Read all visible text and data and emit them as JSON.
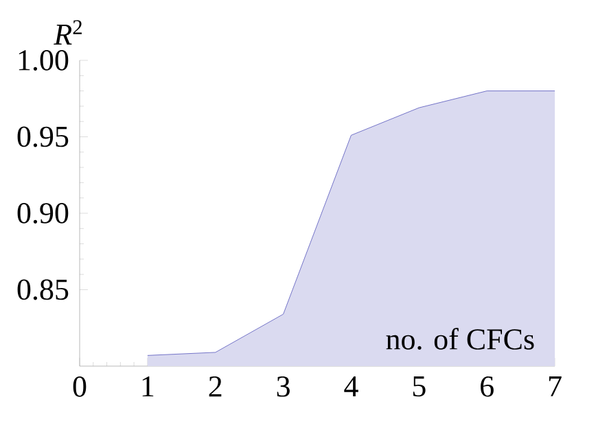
{
  "chart_data": {
    "type": "area",
    "xlabel": "no. of CFCs",
    "ylabel": "*R*$^{2}$",
    "x": [
      1,
      2,
      3,
      4,
      5,
      6,
      7
    ],
    "series": [
      {
        "color": "#5555bb",
        "values": [
          0.807,
          0.809,
          0.834,
          0.951,
          0.969,
          0.98,
          0.98
        ]
      }
    ],
    "xlim": [
      0,
      7
    ],
    "ylim": [
      0.8,
      1.0
    ],
    "xticks": [
      0,
      1,
      2,
      3,
      4,
      5,
      6,
      7
    ],
    "yticks": [
      {
        "value": 0.85,
        "label": "0.85"
      },
      {
        "value": 0.9,
        "label": "0.90"
      },
      {
        "value": 0.95,
        "label": "0.95"
      },
      {
        "value": 1.0,
        "label": "1.00"
      }
    ],
    "grid": false
  }
}
